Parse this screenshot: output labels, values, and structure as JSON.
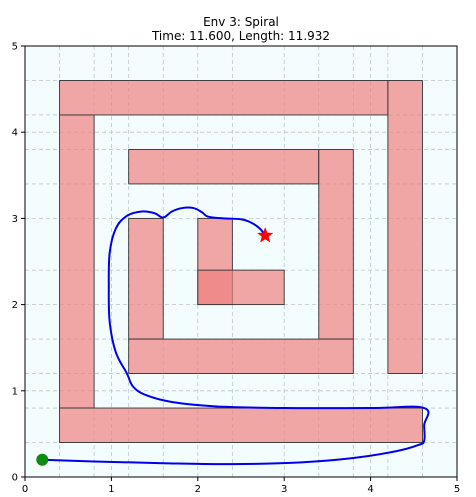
{
  "chart_data": {
    "type": "scatter",
    "title_line1": "Env 3: Spiral",
    "title_line2": "Time: 11.600, Length: 11.932",
    "xlabel": "",
    "ylabel": "",
    "xlim": [
      0,
      5
    ],
    "ylim": [
      0,
      5
    ],
    "xticks": [
      0,
      1,
      2,
      3,
      4,
      5
    ],
    "yticks": [
      0,
      1,
      2,
      3,
      4,
      5
    ],
    "background_color": "#f3fdfe",
    "obstacle_color": "#f08080",
    "path_color": "#0000ee",
    "start_color": "#118a11",
    "goal_color": "#ff0000",
    "grid": true,
    "obstacles": [
      {
        "x": 0.4,
        "y": 4.2,
        "w": 3.8,
        "h": 0.4
      },
      {
        "x": 4.2,
        "y": 1.2,
        "w": 0.4,
        "h": 3.4
      },
      {
        "x": 0.4,
        "y": 0.8,
        "w": 0.4,
        "h": 3.4
      },
      {
        "x": 0.4,
        "y": 0.4,
        "w": 4.2,
        "h": 0.4
      },
      {
        "x": 1.2,
        "y": 3.4,
        "w": 2.2,
        "h": 0.4
      },
      {
        "x": 3.4,
        "y": 1.6,
        "w": 0.4,
        "h": 2.2
      },
      {
        "x": 1.2,
        "y": 1.6,
        "w": 0.4,
        "h": 1.4
      },
      {
        "x": 1.2,
        "y": 1.2,
        "w": 2.6,
        "h": 0.4
      },
      {
        "x": 2.0,
        "y": 2.0,
        "w": 0.4,
        "h": 1.0
      },
      {
        "x": 2.0,
        "y": 2.0,
        "w": 1.0,
        "h": 0.4
      }
    ],
    "path": [
      [
        0.2,
        0.2
      ],
      [
        0.8,
        0.18
      ],
      [
        1.6,
        0.16
      ],
      [
        2.4,
        0.15
      ],
      [
        3.2,
        0.17
      ],
      [
        3.8,
        0.22
      ],
      [
        4.3,
        0.3
      ],
      [
        4.55,
        0.37
      ],
      [
        4.62,
        0.42
      ],
      [
        4.62,
        0.6
      ],
      [
        4.62,
        0.8
      ],
      [
        4.0,
        0.8
      ],
      [
        3.0,
        0.8
      ],
      [
        2.2,
        0.82
      ],
      [
        1.7,
        0.87
      ],
      [
        1.4,
        0.95
      ],
      [
        1.25,
        1.05
      ],
      [
        1.18,
        1.2
      ],
      [
        1.05,
        1.45
      ],
      [
        0.98,
        1.8
      ],
      [
        0.97,
        2.2
      ],
      [
        0.98,
        2.6
      ],
      [
        1.05,
        2.88
      ],
      [
        1.18,
        3.03
      ],
      [
        1.35,
        3.08
      ],
      [
        1.5,
        3.06
      ],
      [
        1.6,
        3.01
      ],
      [
        1.7,
        3.08
      ],
      [
        1.82,
        3.12
      ],
      [
        1.95,
        3.12
      ],
      [
        2.05,
        3.07
      ],
      [
        2.12,
        3.02
      ],
      [
        2.3,
        3.0
      ],
      [
        2.5,
        2.99
      ],
      [
        2.62,
        2.95
      ],
      [
        2.72,
        2.88
      ],
      [
        2.78,
        2.8
      ]
    ],
    "start": [
      0.2,
      0.2
    ],
    "goal": [
      2.78,
      2.8
    ]
  }
}
